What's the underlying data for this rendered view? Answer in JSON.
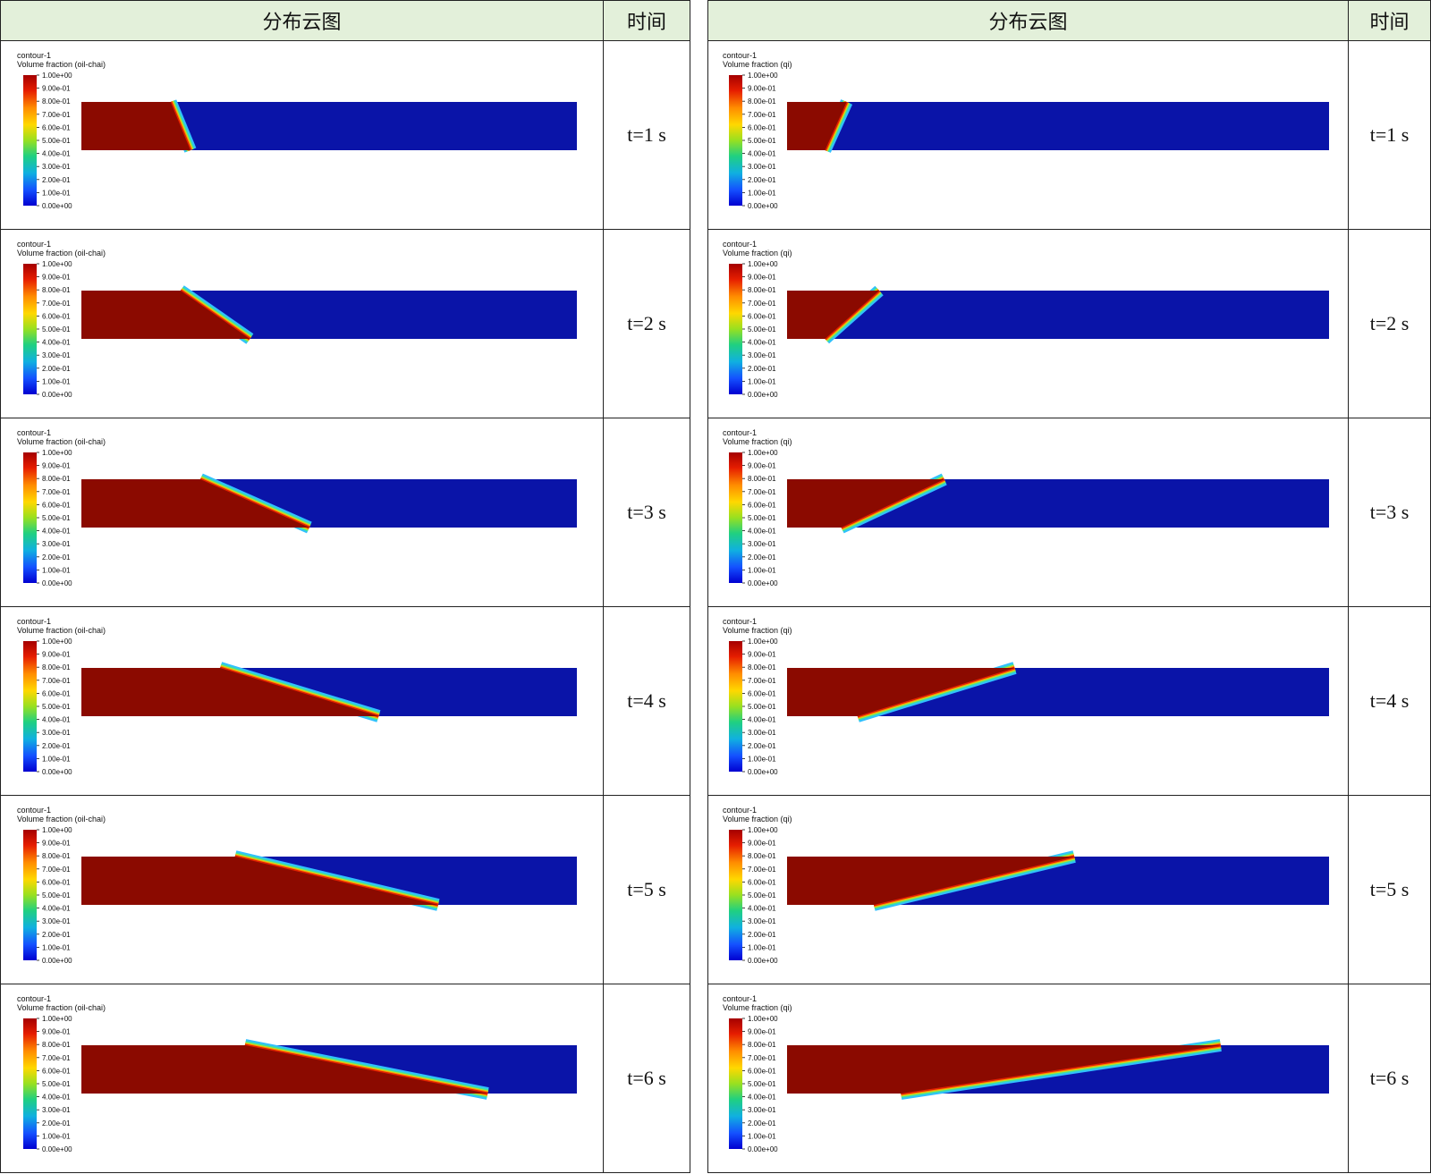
{
  "headers": {
    "figure": "分布云图",
    "time": "时间"
  },
  "legend": {
    "contour_name": "contour-1",
    "colorbar_ticks": [
      "1.00e+00",
      "9.00e-01",
      "8.00e-01",
      "7.00e-01",
      "6.00e-01",
      "5.00e-01",
      "4.00e-01",
      "3.00e-01",
      "2.00e-01",
      "1.00e-01",
      "0.00e+00"
    ]
  },
  "colors": {
    "oil": "#8b0a00",
    "water": "#0a14a8",
    "header_bg": "#e3f0da"
  },
  "left": {
    "quantity": "Volume fraction (oil-chai)",
    "rows": [
      {
        "time": "t=1 s",
        "front_top": 0.18,
        "front_bottom": 0.22
      },
      {
        "time": "t=2 s",
        "front_top": 0.2,
        "front_bottom": 0.34
      },
      {
        "time": "t=3 s",
        "front_top": 0.24,
        "front_bottom": 0.46
      },
      {
        "time": "t=4 s",
        "front_top": 0.28,
        "front_bottom": 0.6
      },
      {
        "time": "t=5 s",
        "front_top": 0.31,
        "front_bottom": 0.72
      },
      {
        "time": "t=6 s",
        "front_top": 0.33,
        "front_bottom": 0.82
      }
    ]
  },
  "right": {
    "quantity": "Volume fraction (qi)",
    "rows": [
      {
        "time": "t=1 s",
        "front_top": 0.11,
        "front_bottom": 0.07
      },
      {
        "time": "t=2 s",
        "front_top": 0.17,
        "front_bottom": 0.07
      },
      {
        "time": "t=3 s",
        "front_top": 0.29,
        "front_bottom": 0.1
      },
      {
        "time": "t=4 s",
        "front_top": 0.42,
        "front_bottom": 0.13
      },
      {
        "time": "t=5 s",
        "front_top": 0.53,
        "front_bottom": 0.16
      },
      {
        "time": "t=6 s",
        "front_top": 0.8,
        "front_bottom": 0.21
      }
    ]
  }
}
